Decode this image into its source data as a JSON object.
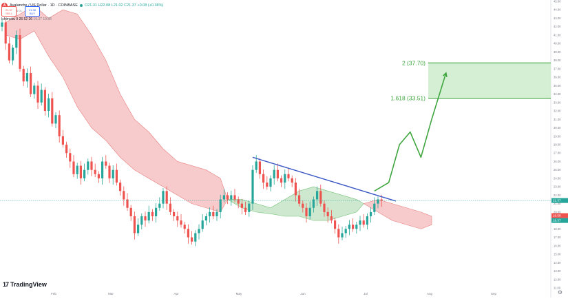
{
  "header": {
    "symbol_title": "Avalanche / US Dollar · 1D · COINBASE",
    "ohlc": "O21.31 H22.08 L21.02 C21.37 +0.08 (+0.38%)",
    "sell_price": "21.37",
    "sell_label": "SELL",
    "spread": "0.01",
    "buy_price": "21.38",
    "buy_label": "BUY",
    "indicator": "Ichimoku 9 26 52 26",
    "indicator_values": "19.37  19.58"
  },
  "branding": {
    "logo_mark": "17",
    "logo_text": "TradingView"
  },
  "icons": {
    "symbol": "avax-logo-icon",
    "status": "live-dot-icon",
    "settings": "gear-icon"
  },
  "colors": {
    "up": "#26a69a",
    "down": "#ef5350",
    "bearish_cloud": "#f7c6c6",
    "bullish_cloud": "#c8e6c9",
    "trendline": "#3a57c4",
    "projection": "#3fa63f",
    "target_zone": "#cdeccd"
  },
  "chart_data": {
    "type": "candlestick",
    "ylim": [
      11,
      45
    ],
    "yticks": [
      11,
      12,
      13,
      14,
      15,
      16,
      17,
      18,
      19,
      20,
      21,
      22,
      23,
      24,
      25,
      26,
      27,
      28,
      29,
      30,
      31,
      32,
      33,
      34,
      35,
      36,
      37,
      38,
      39,
      40,
      41,
      42,
      43,
      44,
      45
    ],
    "x_tick_labels": [
      "Feb",
      "Mar",
      "Apr",
      "May",
      "Jun",
      "Jul",
      "Aug",
      "Sep"
    ],
    "price_labels": {
      "last": "21.37",
      "sub": "21.37",
      "lower": "19.58",
      "lower2": "19.37"
    },
    "levels": [
      {
        "label": "2 (37.70)",
        "value": 37.7
      },
      {
        "label": "1.618 (33.51)",
        "value": 33.51
      }
    ],
    "closes": [
      42.5,
      40.0,
      38.0,
      39.5,
      41.0,
      37.0,
      35.5,
      36.5,
      34.0,
      35.0,
      33.0,
      34.5,
      32.0,
      33.5,
      30.5,
      31.5,
      29.0,
      28.0,
      27.0,
      26.0,
      24.5,
      25.5,
      24.0,
      25.0,
      26.0,
      25.0,
      24.5,
      24.0,
      26.0,
      25.5,
      24.0,
      25.0,
      23.5,
      22.5,
      21.5,
      20.5,
      19.5,
      17.5,
      18.5,
      19.5,
      19.0,
      20.0,
      19.5,
      20.5,
      21.0,
      22.5,
      21.0,
      20.0,
      19.5,
      19.0,
      18.5,
      18.0,
      17.0,
      16.5,
      17.5,
      18.0,
      19.0,
      19.5,
      20.0,
      19.5,
      20.0,
      21.5,
      22.0,
      21.5,
      22.0,
      21.5,
      21.0,
      20.5,
      20.0,
      21.0,
      25.0,
      26.0,
      24.5,
      23.5,
      23.0,
      24.0,
      25.0,
      24.0,
      23.5,
      24.5,
      24.0,
      23.5,
      22.0,
      21.0,
      20.5,
      19.5,
      20.5,
      21.5,
      22.5,
      21.0,
      20.0,
      19.5,
      19.0,
      18.0,
      17.0,
      17.5,
      18.0,
      18.5,
      18.0,
      18.5,
      19.0,
      18.5,
      19.5,
      20.0,
      21.0,
      21.5,
      21.37
    ],
    "bearish_cloud_upper": [
      [
        1,
        42.5
      ],
      [
        5,
        43.5
      ],
      [
        9,
        44.5
      ],
      [
        13,
        43.0
      ],
      [
        17,
        44.0
      ],
      [
        21,
        43.5
      ],
      [
        25,
        41.0
      ],
      [
        29,
        38.0
      ],
      [
        33,
        34.0
      ],
      [
        37,
        31.0
      ],
      [
        41,
        29.5
      ],
      [
        45,
        27.5
      ],
      [
        49,
        26.0
      ],
      [
        53,
        25.5
      ],
      [
        57,
        25.0
      ],
      [
        61,
        24.0
      ],
      [
        63,
        21.5
      ]
    ],
    "bearish_cloud_lower": [
      [
        1,
        41.0
      ],
      [
        5,
        40.5
      ],
      [
        9,
        41.5
      ],
      [
        13,
        38.5
      ],
      [
        17,
        36.0
      ],
      [
        21,
        32.5
      ],
      [
        25,
        30.0
      ],
      [
        29,
        28.5
      ],
      [
        33,
        26.5
      ],
      [
        37,
        25.0
      ],
      [
        41,
        24.0
      ],
      [
        45,
        23.0
      ],
      [
        49,
        22.0
      ],
      [
        53,
        21.0
      ],
      [
        57,
        20.5
      ],
      [
        61,
        20.0
      ],
      [
        63,
        21.5
      ]
    ],
    "bullish_cloud_upper": [
      [
        63,
        21.5
      ],
      [
        67,
        21.5
      ],
      [
        71,
        21.0
      ],
      [
        75,
        20.5
      ],
      [
        79,
        21.5
      ],
      [
        83,
        22.5
      ],
      [
        87,
        23.0
      ],
      [
        91,
        22.5
      ],
      [
        95,
        22.0
      ],
      [
        99,
        21.5
      ],
      [
        101,
        21.0
      ]
    ],
    "bullish_cloud_lower": [
      [
        63,
        21.5
      ],
      [
        67,
        20.5
      ],
      [
        71,
        20.0
      ],
      [
        75,
        19.8
      ],
      [
        79,
        19.5
      ],
      [
        83,
        19.5
      ],
      [
        87,
        19.0
      ],
      [
        91,
        19.0
      ],
      [
        95,
        19.5
      ],
      [
        99,
        20.0
      ],
      [
        101,
        21.0
      ]
    ],
    "bearish_cloud2_upper": [
      [
        101,
        21.0
      ],
      [
        105,
        21.5
      ],
      [
        109,
        21.0
      ],
      [
        113,
        20.5
      ],
      [
        117,
        20.0
      ],
      [
        120,
        19.5
      ]
    ],
    "bearish_cloud2_lower": [
      [
        101,
        21.0
      ],
      [
        105,
        20.0
      ],
      [
        109,
        19.0
      ],
      [
        113,
        18.5
      ],
      [
        117,
        18.0
      ],
      [
        120,
        18.5
      ]
    ],
    "trendline": [
      [
        70,
        26.5
      ],
      [
        110,
        21.3
      ]
    ],
    "projection_path": [
      [
        104,
        22.5
      ],
      [
        108,
        23.5
      ],
      [
        111,
        28.0
      ],
      [
        114,
        29.5
      ],
      [
        117,
        26.5
      ],
      [
        120,
        31.0
      ],
      [
        124,
        36.5
      ]
    ]
  }
}
